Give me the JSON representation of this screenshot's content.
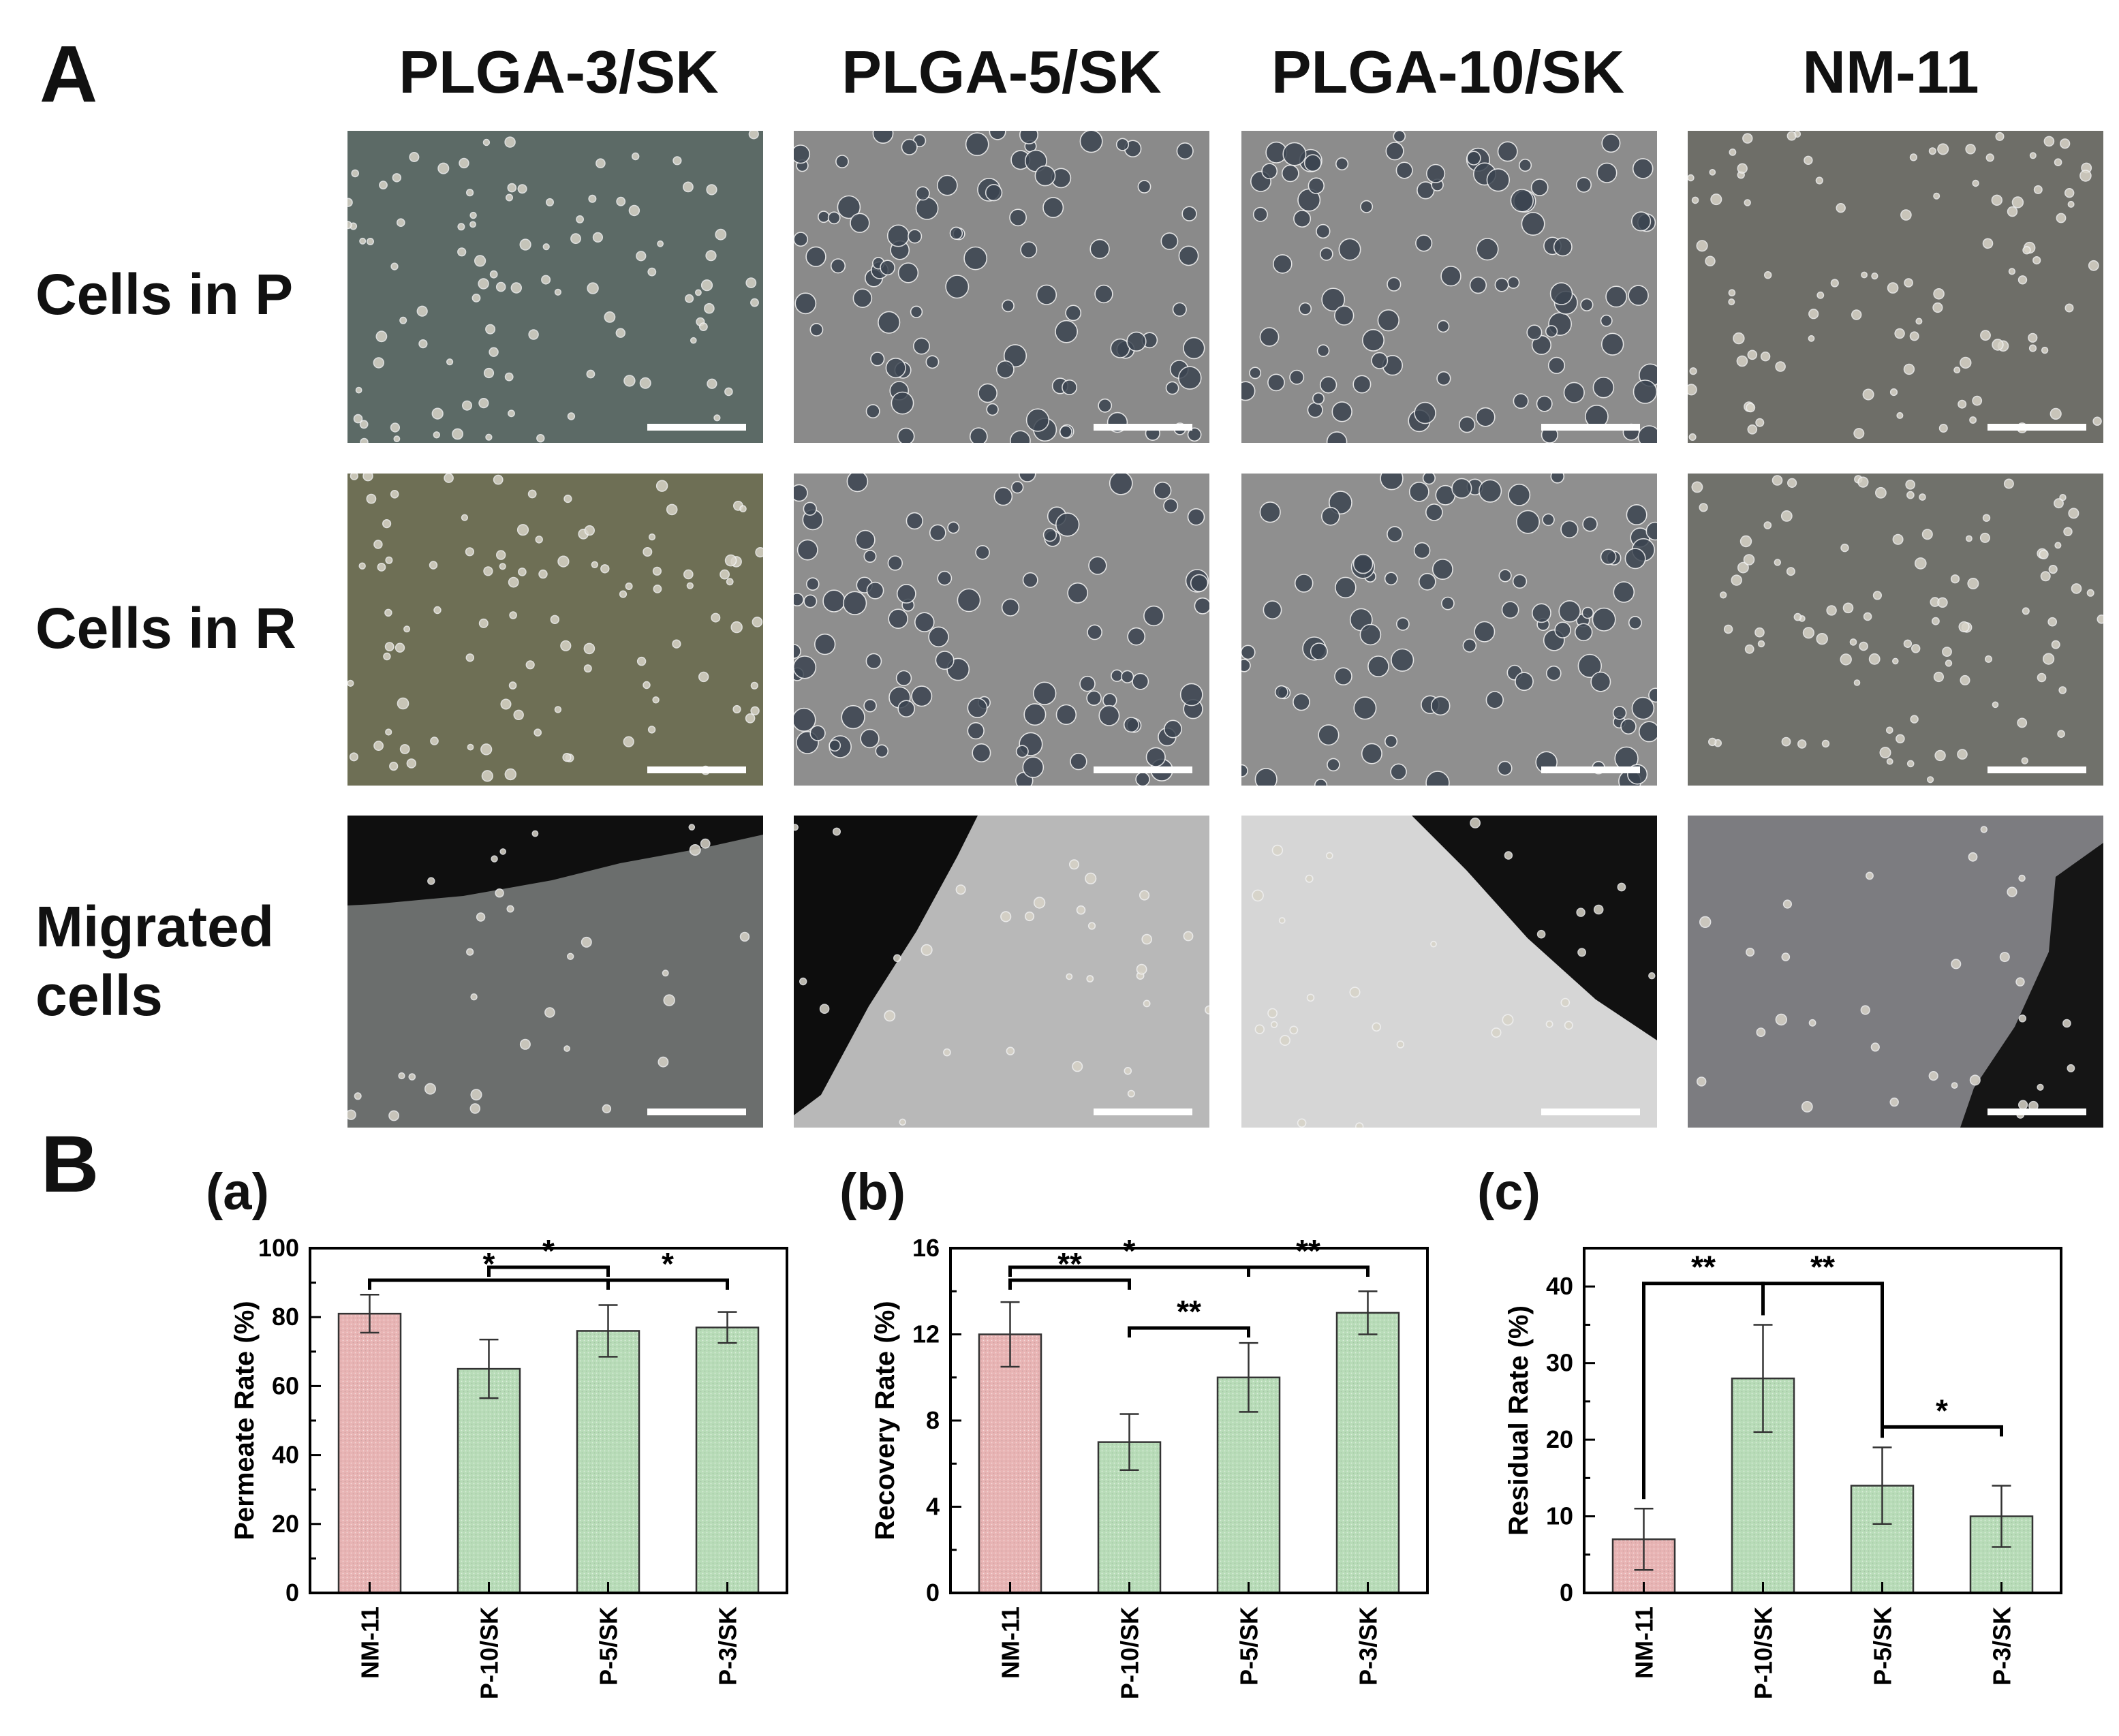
{
  "panels": {
    "a": "A",
    "b": "B"
  },
  "panelA": {
    "columns": [
      "PLGA-3/SK",
      "PLGA-5/SK",
      "PLGA-10/SK",
      "NM-11"
    ],
    "rows": [
      {
        "label_line1": "Cells in P",
        "label_line2": ""
      },
      {
        "label_line1": "Cells in R",
        "label_line2": ""
      },
      {
        "label_line1": "Migrated",
        "label_line2": "cells"
      }
    ]
  },
  "colors": {
    "nm11_bar": "#e8b4b4",
    "plga_bar": "#b8dcb8",
    "bar_stroke": "#333333",
    "axis": "#000000"
  },
  "chart_data": [
    {
      "id": "a",
      "sub_label": "(a)",
      "type": "bar",
      "ylabel": "Permeate Rate (%)",
      "categories": [
        "NM-11",
        "P-10/SK",
        "P-5/SK",
        "P-3/SK"
      ],
      "values": [
        81,
        65,
        76,
        77
      ],
      "errors": [
        5.5,
        8.5,
        7.5,
        4.5
      ],
      "ylim": [
        0,
        100
      ],
      "yticks": [
        0,
        20,
        40,
        60,
        80,
        100
      ],
      "significance": [
        {
          "from": 0,
          "to": 2,
          "label": "*",
          "level": 1
        },
        {
          "from": 1,
          "to": 2,
          "label": "*",
          "level": 2
        },
        {
          "from": 2,
          "to": 3,
          "label": "*",
          "level": 1
        }
      ]
    },
    {
      "id": "b",
      "sub_label": "(b)",
      "type": "bar",
      "ylabel": "Recovery Rate (%)",
      "categories": [
        "NM-11",
        "P-10/SK",
        "P-5/SK",
        "P-3/SK"
      ],
      "values": [
        12,
        7,
        10,
        13
      ],
      "errors": [
        1.5,
        1.3,
        1.6,
        1.0
      ],
      "ylim": [
        0,
        16
      ],
      "yticks": [
        0,
        4,
        8,
        12,
        16
      ],
      "significance": [
        {
          "from": 0,
          "to": 1,
          "label": "**",
          "level": 1
        },
        {
          "from": 1,
          "to": 2,
          "label": "**",
          "level": 0
        },
        {
          "from": 0,
          "to": 2,
          "label": "*",
          "level": 2
        },
        {
          "from": 2,
          "to": 3,
          "label": "**",
          "level": 2
        }
      ]
    },
    {
      "id": "c",
      "sub_label": "(c)",
      "type": "bar",
      "ylabel": "Residual Rate (%)",
      "categories": [
        "NM-11",
        "P-10/SK",
        "P-5/SK",
        "P-3/SK"
      ],
      "values": [
        7,
        28,
        14,
        10
      ],
      "errors": [
        4,
        7,
        5,
        4
      ],
      "ylim": [
        0,
        45
      ],
      "yticks": [
        0,
        10,
        20,
        30,
        40
      ],
      "significance": [
        {
          "from": 0,
          "to": 1,
          "label": "**",
          "level": 0,
          "style": "bracket"
        },
        {
          "from": 1,
          "to": 2,
          "label": "**",
          "level": 0,
          "style": "bracket"
        },
        {
          "from": 2,
          "to": 3,
          "label": "*",
          "level": 0
        }
      ]
    }
  ]
}
